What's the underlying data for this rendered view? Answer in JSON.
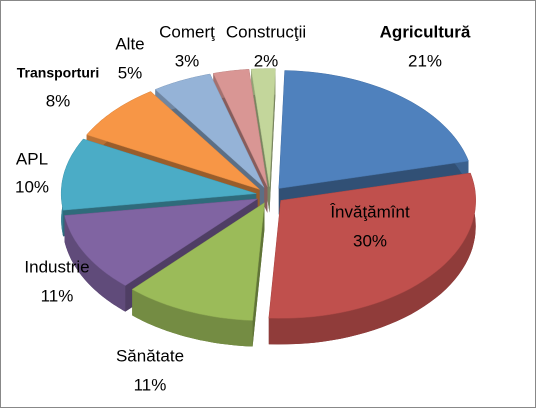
{
  "chart_data": {
    "type": "pie3d",
    "categories": [
      "Agricultură",
      "Învăţămînt",
      "Sănătate",
      "Industrie",
      "APL",
      "Transporturi",
      "Alte",
      "Comerţ",
      "Construcţii"
    ],
    "values": [
      21,
      30,
      11,
      11,
      10,
      8,
      5,
      3,
      2
    ],
    "value_labels": [
      "21%",
      "30%",
      "11%",
      "11%",
      "10%",
      "8%",
      "5%",
      "3%",
      "2%"
    ],
    "colors": [
      "#4f81bd",
      "#c0504d",
      "#9bbb59",
      "#8064a2",
      "#4bacc6",
      "#f79646",
      "#95b3d7",
      "#d99694",
      "#c3d69b"
    ]
  }
}
